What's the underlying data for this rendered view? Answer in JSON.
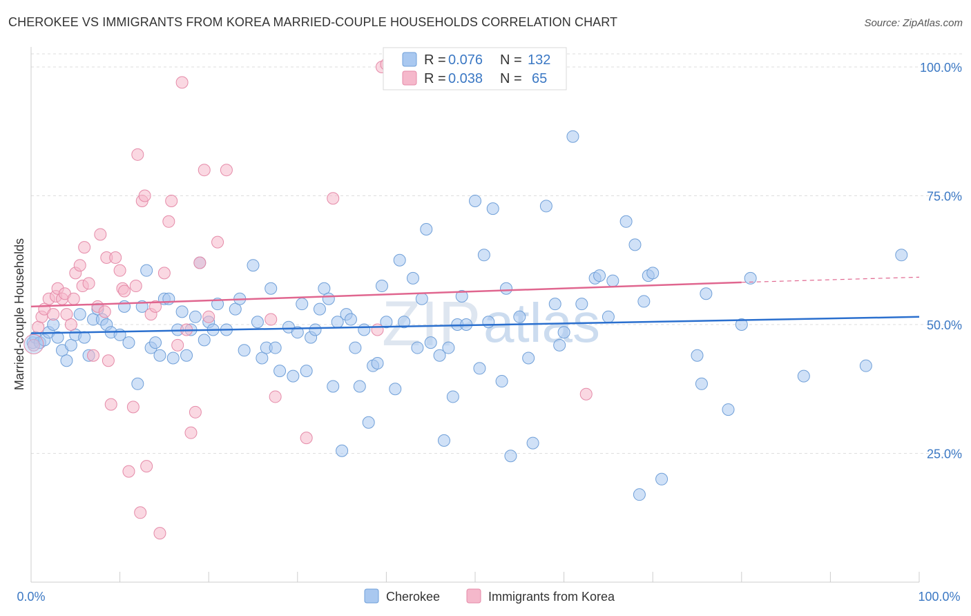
{
  "header": {
    "title": "CHEROKEE VS IMMIGRANTS FROM KOREA MARRIED-COUPLE HOUSEHOLDS CORRELATION CHART",
    "source": "Source: ZipAtlas.com"
  },
  "watermark": {
    "zip": "ZIP",
    "atlas": "atlas"
  },
  "legend_top": [
    {
      "r_label": "R =",
      "r_value": "0.076",
      "n_label": "N =",
      "n_value": "132",
      "color": "#a9c8f0"
    },
    {
      "r_label": "R =",
      "r_value": "0.038",
      "n_label": "N =",
      "n_value": "65",
      "color": "#f5b8cb"
    }
  ],
  "legend_bottom": [
    {
      "label": "Cherokee",
      "color": "#a9c8f0"
    },
    {
      "label": "Immigrants from Korea",
      "color": "#f5b8cb"
    }
  ],
  "chart_data": {
    "type": "scatter",
    "title": "CHEROKEE VS IMMIGRANTS FROM KOREA MARRIED-COUPLE HOUSEHOLDS CORRELATION CHART",
    "xlabel": "",
    "ylabel": "Married-couple Households",
    "xlim": [
      0,
      100
    ],
    "ylim": [
      0,
      100
    ],
    "x_ticks": [
      "0.0%",
      "100.0%"
    ],
    "y_ticks": [
      "25.0%",
      "50.0%",
      "75.0%",
      "100.0%"
    ],
    "y_tick_values": [
      25,
      50,
      75,
      100
    ],
    "grid": true,
    "legend_position": "top-center",
    "colors": {
      "cherokee_fill": "#a9c8f0",
      "cherokee_stroke": "#6f9fd8",
      "cherokee_line": "#2a6fce",
      "korea_fill": "#f5b8cb",
      "korea_stroke": "#e58aa8",
      "korea_line": "#e0668f"
    },
    "series": [
      {
        "name": "Cherokee",
        "r": 0.076,
        "n": 132,
        "trend": {
          "x0": 0,
          "y0": 48.3,
          "x1": 100,
          "y1": 51.5
        },
        "points": [
          [
            0.2,
            46.5
          ],
          [
            0.5,
            47.5
          ],
          [
            1,
            46.5
          ],
          [
            1.5,
            47
          ],
          [
            2,
            48.5
          ],
          [
            2.5,
            50
          ],
          [
            3,
            47.5
          ],
          [
            3.5,
            45
          ],
          [
            4,
            43
          ],
          [
            4.5,
            46
          ],
          [
            5,
            48
          ],
          [
            5.5,
            52
          ],
          [
            6,
            47.5
          ],
          [
            6.5,
            44
          ],
          [
            7,
            51
          ],
          [
            7.5,
            53
          ],
          [
            8,
            51
          ],
          [
            8.5,
            50
          ],
          [
            9,
            48.5
          ],
          [
            10,
            48
          ],
          [
            10.5,
            53.5
          ],
          [
            11,
            46.5
          ],
          [
            12,
            38.5
          ],
          [
            12.5,
            53.5
          ],
          [
            13,
            60.5
          ],
          [
            13.5,
            45.5
          ],
          [
            14,
            46.5
          ],
          [
            14.5,
            44
          ],
          [
            15,
            55
          ],
          [
            15.5,
            55
          ],
          [
            16,
            43.5
          ],
          [
            16.5,
            49
          ],
          [
            17,
            52.5
          ],
          [
            17.5,
            44
          ],
          [
            18,
            49
          ],
          [
            18.5,
            51.5
          ],
          [
            19,
            62
          ],
          [
            19.5,
            47
          ],
          [
            20,
            50.5
          ],
          [
            20.5,
            49
          ],
          [
            21,
            54
          ],
          [
            22,
            49
          ],
          [
            23,
            53
          ],
          [
            23.5,
            55
          ],
          [
            24,
            45
          ],
          [
            25,
            61.5
          ],
          [
            25.5,
            50.5
          ],
          [
            26,
            43.5
          ],
          [
            26.5,
            45.5
          ],
          [
            27,
            57
          ],
          [
            27.5,
            45.5
          ],
          [
            28,
            41
          ],
          [
            29,
            49.5
          ],
          [
            29.5,
            40
          ],
          [
            30,
            48.5
          ],
          [
            30.5,
            54
          ],
          [
            31,
            41
          ],
          [
            31.5,
            47.5
          ],
          [
            32,
            49
          ],
          [
            32.5,
            53
          ],
          [
            33,
            57
          ],
          [
            33.5,
            55
          ],
          [
            34,
            38
          ],
          [
            34.5,
            50.5
          ],
          [
            35,
            25.5
          ],
          [
            35.5,
            52
          ],
          [
            36,
            51
          ],
          [
            36.5,
            45.5
          ],
          [
            37,
            38
          ],
          [
            37.5,
            49
          ],
          [
            38,
            31
          ],
          [
            38.5,
            42
          ],
          [
            39,
            42.5
          ],
          [
            39.5,
            57.5
          ],
          [
            40,
            50.5
          ],
          [
            41,
            37.5
          ],
          [
            41.5,
            62.5
          ],
          [
            42,
            50.5
          ],
          [
            43,
            59
          ],
          [
            43.5,
            45.5
          ],
          [
            44,
            55
          ],
          [
            44.5,
            68.5
          ],
          [
            45,
            46.5
          ],
          [
            46,
            44
          ],
          [
            46.5,
            27.5
          ],
          [
            47,
            45.5
          ],
          [
            47.5,
            36
          ],
          [
            48,
            50
          ],
          [
            48.5,
            55.5
          ],
          [
            49,
            50
          ],
          [
            50,
            74
          ],
          [
            50.5,
            41.5
          ],
          [
            51,
            63.5
          ],
          [
            51.5,
            50.5
          ],
          [
            52,
            72.5
          ],
          [
            53,
            39
          ],
          [
            53.5,
            57
          ],
          [
            54,
            24.5
          ],
          [
            55,
            51.5
          ],
          [
            56,
            43.5
          ],
          [
            56.5,
            27
          ],
          [
            58,
            73
          ],
          [
            59,
            54
          ],
          [
            59.5,
            46
          ],
          [
            60,
            48.5
          ],
          [
            61,
            86.5
          ],
          [
            62,
            54
          ],
          [
            63.5,
            59
          ],
          [
            64,
            59.5
          ],
          [
            65,
            51.5
          ],
          [
            65.5,
            58.5
          ],
          [
            67,
            70
          ],
          [
            68,
            65.5
          ],
          [
            68.5,
            17
          ],
          [
            69,
            54.5
          ],
          [
            69.5,
            59.5
          ],
          [
            70,
            60
          ],
          [
            71,
            20
          ],
          [
            75,
            44
          ],
          [
            75.5,
            38.5
          ],
          [
            76,
            56
          ],
          [
            78.5,
            33.5
          ],
          [
            80,
            50
          ],
          [
            81,
            59
          ],
          [
            87,
            40
          ],
          [
            94,
            42
          ],
          [
            98,
            63.5
          ]
        ]
      },
      {
        "name": "Immigrants from Korea",
        "r": 0.038,
        "n": 65,
        "trend": {
          "x0": 0,
          "y0": 53.5,
          "x1": 80,
          "y1": 58.2,
          "dash_x1": 100,
          "dash_y1": 59.2
        },
        "points": [
          [
            0.3,
            46
          ],
          [
            0.8,
            49.5
          ],
          [
            1.2,
            51.5
          ],
          [
            1.5,
            53
          ],
          [
            2,
            55
          ],
          [
            2.5,
            52
          ],
          [
            2.8,
            55.5
          ],
          [
            3,
            57
          ],
          [
            3.5,
            55
          ],
          [
            3.8,
            56
          ],
          [
            4,
            52
          ],
          [
            4.5,
            50
          ],
          [
            4.8,
            55
          ],
          [
            5,
            60
          ],
          [
            5.5,
            61.5
          ],
          [
            5.8,
            57.5
          ],
          [
            6,
            65
          ],
          [
            6.5,
            58
          ],
          [
            7,
            44
          ],
          [
            7.5,
            53.5
          ],
          [
            7.8,
            67.5
          ],
          [
            8.3,
            52.5
          ],
          [
            8.5,
            63
          ],
          [
            8.7,
            43
          ],
          [
            9,
            34.5
          ],
          [
            9.5,
            63
          ],
          [
            10,
            60.5
          ],
          [
            10.3,
            57
          ],
          [
            10.5,
            56.5
          ],
          [
            11,
            21.5
          ],
          [
            11.5,
            34
          ],
          [
            11.8,
            57.5
          ],
          [
            12,
            83
          ],
          [
            12.3,
            13.5
          ],
          [
            12.5,
            74
          ],
          [
            12.8,
            75
          ],
          [
            13,
            22.5
          ],
          [
            13.5,
            52
          ],
          [
            14,
            53.5
          ],
          [
            14.5,
            9.5
          ],
          [
            15,
            60
          ],
          [
            15.5,
            70
          ],
          [
            15.8,
            74
          ],
          [
            16.5,
            46
          ],
          [
            17,
            97
          ],
          [
            17.5,
            49
          ],
          [
            18,
            29
          ],
          [
            18.5,
            33
          ],
          [
            19,
            62
          ],
          [
            19.5,
            80
          ],
          [
            20,
            51.5
          ],
          [
            21,
            66
          ],
          [
            22,
            80
          ],
          [
            27,
            51
          ],
          [
            27.5,
            36
          ],
          [
            31,
            28
          ],
          [
            34,
            74.5
          ],
          [
            39,
            49
          ],
          [
            39.5,
            100
          ],
          [
            40,
            100.5
          ],
          [
            62.5,
            36.5
          ]
        ]
      }
    ]
  }
}
